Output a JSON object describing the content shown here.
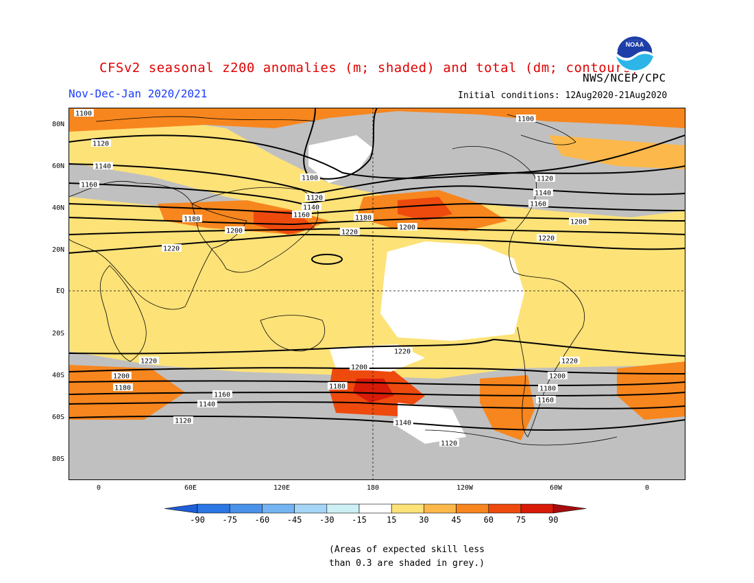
{
  "title": "CFSv2 seasonal z200 anomalies (m; shaded) and total (dm; contours)",
  "agency": "NWS/NCEP/CPC",
  "logo_text": "NOAA",
  "period": "Nov-Dec-Jan 2020/2021",
  "initial_conditions": "Initial conditions: 12Aug2020-21Aug2020",
  "lat_labels": [
    "80N",
    "60N",
    "40N",
    "20N",
    "EQ",
    "20S",
    "40S",
    "60S",
    "80S"
  ],
  "lon_labels": [
    "0",
    "60E",
    "120E",
    "180",
    "120W",
    "60W",
    "0"
  ],
  "colorbar": {
    "levels": [
      "-90",
      "-75",
      "-60",
      "-45",
      "-30",
      "-15",
      "15",
      "30",
      "45",
      "60",
      "75",
      "90"
    ],
    "colors": [
      "#1e5fd8",
      "#2b78e4",
      "#4a92ea",
      "#74b4f2",
      "#a6d6f7",
      "#cdf0f5",
      "#ffffff",
      "#fde278",
      "#fcb84a",
      "#f7861e",
      "#ee4a0e",
      "#d81a08",
      "#a60c0c"
    ]
  },
  "skill_note": [
    "(Areas of expected skill less",
    "than 0.3 are shaded in grey.)"
  ],
  "contour_labels": [
    {
      "text": "1100"
    },
    {
      "text": "1120"
    },
    {
      "text": "1140"
    },
    {
      "text": "1160"
    },
    {
      "text": "1180"
    },
    {
      "text": "1200"
    },
    {
      "text": "1220"
    },
    {
      "text": "1100"
    },
    {
      "text": "1120"
    },
    {
      "text": "1140"
    },
    {
      "text": "1160"
    },
    {
      "text": "1180"
    },
    {
      "text": "1200"
    },
    {
      "text": "1220"
    },
    {
      "text": "1100"
    },
    {
      "text": "1120"
    },
    {
      "text": "1140"
    },
    {
      "text": "1160"
    },
    {
      "text": "1200"
    },
    {
      "text": "1220"
    },
    {
      "text": "1220"
    },
    {
      "text": "1200"
    },
    {
      "text": "1180"
    },
    {
      "text": "1160"
    },
    {
      "text": "1140"
    },
    {
      "text": "1120"
    },
    {
      "text": "1220"
    },
    {
      "text": "1200"
    },
    {
      "text": "1180"
    },
    {
      "text": "1140"
    },
    {
      "text": "1120"
    },
    {
      "text": "1220"
    },
    {
      "text": "1200"
    },
    {
      "text": "1180"
    },
    {
      "text": "1160"
    }
  ],
  "colors": {
    "skill_grey": "#c0c0c0",
    "title_red": "#e00000",
    "period_blue": "#1a3cff",
    "anomaly_15_30": "#fde278",
    "anomaly_30_45": "#fcb84a",
    "anomaly_45_60": "#f7861e",
    "anomaly_60_75": "#ee4a0e",
    "anomaly_75_90": "#d81a08"
  }
}
